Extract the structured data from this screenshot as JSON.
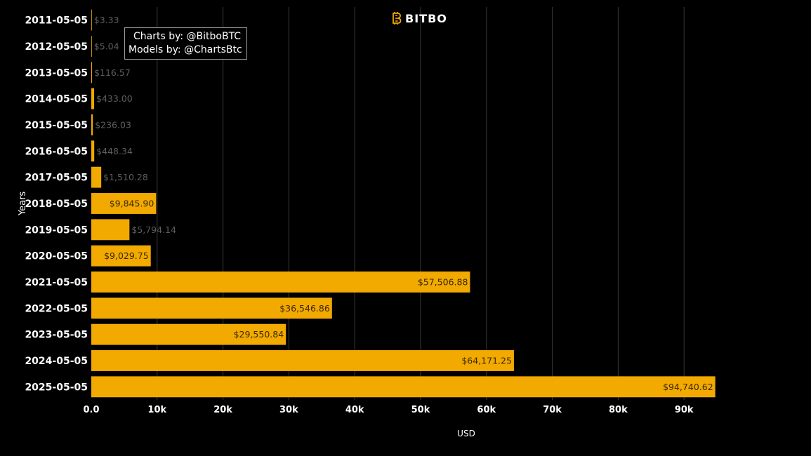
{
  "logo": {
    "text": "BITBO",
    "icon": "bitcoin-b-icon",
    "icon_color": "#f2a900"
  },
  "credits": {
    "line1": "Charts by: @BitboBTC",
    "line2": "Models by: @ChartsBtc"
  },
  "chart_data": {
    "type": "bar",
    "orientation": "horizontal",
    "title": "",
    "xlabel": "USD",
    "ylabel": "Years",
    "xlim": [
      0,
      100000
    ],
    "x_ticks": [
      0,
      10000,
      20000,
      30000,
      40000,
      50000,
      60000,
      70000,
      80000,
      90000
    ],
    "x_tick_labels": [
      "0.0",
      "10k",
      "20k",
      "30k",
      "40k",
      "50k",
      "60k",
      "70k",
      "80k",
      "90k"
    ],
    "grid": "vertical",
    "bar_color": "#f2a900",
    "background": "#000000",
    "categories": [
      "2011-05-05",
      "2012-05-05",
      "2013-05-05",
      "2014-05-05",
      "2015-05-05",
      "2016-05-05",
      "2017-05-05",
      "2018-05-05",
      "2019-05-05",
      "2020-05-05",
      "2021-05-05",
      "2022-05-05",
      "2023-05-05",
      "2024-05-05",
      "2025-05-05"
    ],
    "values": [
      3.33,
      5.04,
      116.57,
      433.0,
      236.03,
      448.34,
      1510.28,
      9845.9,
      5794.14,
      9029.75,
      57506.88,
      36546.86,
      29550.84,
      64171.25,
      94740.62
    ],
    "value_labels": [
      "$3.33",
      "$5.04",
      "$116.57",
      "$433.00",
      "$236.03",
      "$448.34",
      "$1,510.28",
      "$9,845.90",
      "$5,794.14",
      "$9,029.75",
      "$57,506.88",
      "$36,546.86",
      "$29,550.84",
      "$64,171.25",
      "$94,740.62"
    ]
  }
}
